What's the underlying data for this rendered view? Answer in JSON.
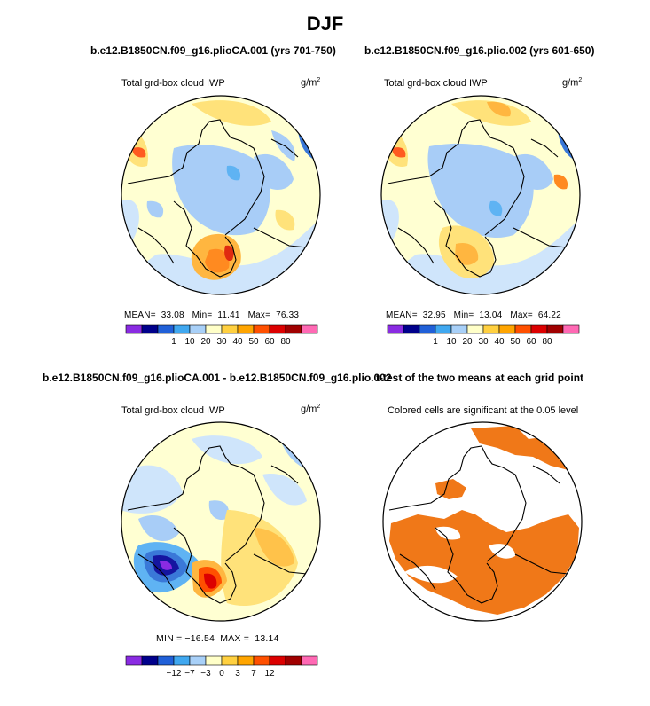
{
  "figure": {
    "title": "DJF"
  },
  "panels": [
    {
      "id": "p1",
      "experiment": "b.e12.B1850CN.f09_g16.plioCA.001 (yrs 701-750)",
      "variable": "Total grd-box cloud IWP",
      "units_base": "g/m",
      "units_exp": "2",
      "stats": {
        "mean_label": "MEAN",
        "mean": "33.08",
        "min_label": "Min",
        "min": "11.41",
        "max_label": "Max",
        "max": "76.33"
      }
    },
    {
      "id": "p2",
      "experiment": "b.e12.B1850CN.f09_g16.plio.002 (yrs 601-650)",
      "variable": "Total grd-box cloud IWP",
      "units_base": "g/m",
      "units_exp": "2",
      "stats": {
        "mean_label": "MEAN",
        "mean": "32.95",
        "min_label": "Min",
        "min": "13.04",
        "max_label": "Max",
        "max": "64.22"
      }
    },
    {
      "id": "p3",
      "experiment": "b.e12.B1850CN.f09_g16.plioCA.001 - b.e12.B1850CN.f09_g16.plio.002",
      "variable": "Total grd-box cloud IWP",
      "units_base": "g/m",
      "units_exp": "2",
      "stats_line": "MIN = −16.54  MAX =  13.14"
    },
    {
      "id": "p4",
      "experiment": "t-test of the two means at each grid point",
      "subtitle": "Colored cells are significant at the 0.05 level"
    }
  ],
  "chart_data": [
    {
      "type": "heatmap",
      "projection": "polar-stereographic (north pole)",
      "title": "b.e12.B1850CN.f09_g16.plioCA.001 (yrs 701-750)",
      "variable": "Total grd-box cloud IWP",
      "units": "g/m2",
      "colorbar": {
        "labels": [
          "1",
          "10",
          "20",
          "30",
          "40",
          "50",
          "60",
          "80"
        ],
        "colors": [
          "#8a2be2",
          "#00008b",
          "#2060d8",
          "#40a8f0",
          "#a8d0f8",
          "#ffffc8",
          "#ffd040",
          "#ffa500",
          "#ff5000",
          "#dc0000",
          "#a00000",
          "#ff69b4"
        ]
      },
      "mean": 33.08,
      "min": 11.41,
      "max": 76.33
    },
    {
      "type": "heatmap",
      "projection": "polar-stereographic (north pole)",
      "title": "b.e12.B1850CN.f09_g16.plio.002 (yrs 601-650)",
      "variable": "Total grd-box cloud IWP",
      "units": "g/m2",
      "colorbar": {
        "labels": [
          "1",
          "10",
          "20",
          "30",
          "40",
          "50",
          "60",
          "80"
        ],
        "colors": [
          "#8a2be2",
          "#00008b",
          "#2060d8",
          "#40a8f0",
          "#a8d0f8",
          "#ffffc8",
          "#ffd040",
          "#ffa500",
          "#ff5000",
          "#dc0000",
          "#a00000",
          "#ff69b4"
        ]
      },
      "mean": 32.95,
      "min": 13.04,
      "max": 64.22
    },
    {
      "type": "heatmap",
      "projection": "polar-stereographic (north pole)",
      "title": "b.e12.B1850CN.f09_g16.plioCA.001 - b.e12.B1850CN.f09_g16.plio.002",
      "variable": "Total grd-box cloud IWP (difference)",
      "units": "g/m2",
      "colorbar": {
        "labels": [
          "−12",
          "−7",
          "−3",
          "0",
          "3",
          "7",
          "12"
        ],
        "colors": [
          "#8a2be2",
          "#00008b",
          "#2060d8",
          "#40a8f0",
          "#a8d0f8",
          "#ffffc8",
          "#ffd040",
          "#ffa500",
          "#ff5000",
          "#dc0000",
          "#a00000",
          "#ff69b4"
        ]
      },
      "min": -16.54,
      "max": 13.14
    },
    {
      "type": "heatmap",
      "projection": "polar-stereographic (north pole)",
      "title": "t-test of the two means at each grid point",
      "note": "Colored cells are significant at the 0.05 level",
      "significance_level": 0.05,
      "significant_color": "#f07818"
    }
  ],
  "colors": {
    "bar": [
      "#8a2be2",
      "#00008b",
      "#2060d8",
      "#40a8f0",
      "#a8d0f8",
      "#ffffc8",
      "#ffd040",
      "#ffa500",
      "#ff5000",
      "#dc0000",
      "#a00000",
      "#ff69b4"
    ],
    "significant": "#f07818"
  }
}
